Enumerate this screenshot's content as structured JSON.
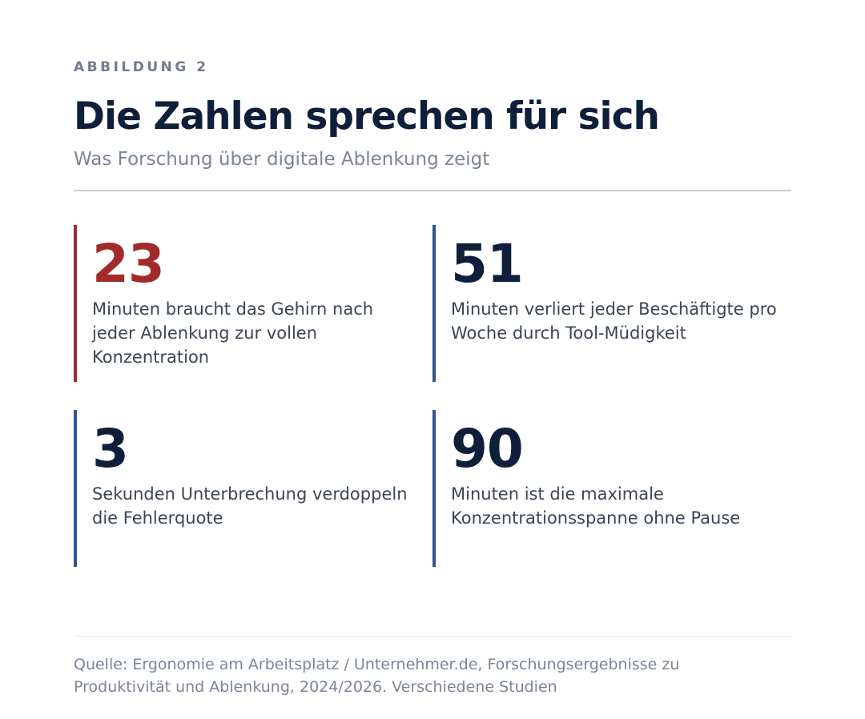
{
  "header": {
    "kicker": "ABBILDUNG 2",
    "title": "Die Zahlen sprechen für sich",
    "subtitle": "Was Forschung über digitale Ablenkung zeigt"
  },
  "stats": [
    {
      "value": "23",
      "description": "Minuten braucht das Gehirn nach jeder Ablenkung zur vollen Konzentration",
      "accent_color": "#a32a2a"
    },
    {
      "value": "51",
      "description": "Minuten verliert jeder Beschäftigte pro Woche durch Tool-Müdigkeit",
      "accent_color": "#2f5690"
    },
    {
      "value": "3",
      "description": "Sekunden Unterbrechung verdoppeln die Fehlerquote",
      "accent_color": "#2f5690"
    },
    {
      "value": "90",
      "description": "Minuten ist die maximale Konzentrationsspanne ohne Pause",
      "accent_color": "#2f5690"
    }
  ],
  "footer": {
    "source": "Quelle: Ergonomie am Arbeitsplatz / Unternehmer.de, Forschungsergebnisse zu Produktivität und Ablenkung, 2024/2026. Verschiedene Studien"
  },
  "colors": {
    "primary_text": "#0f1e3a",
    "highlight_red": "#a32a2a",
    "border_blue": "#2f5690",
    "muted_text": "#7a8596"
  }
}
